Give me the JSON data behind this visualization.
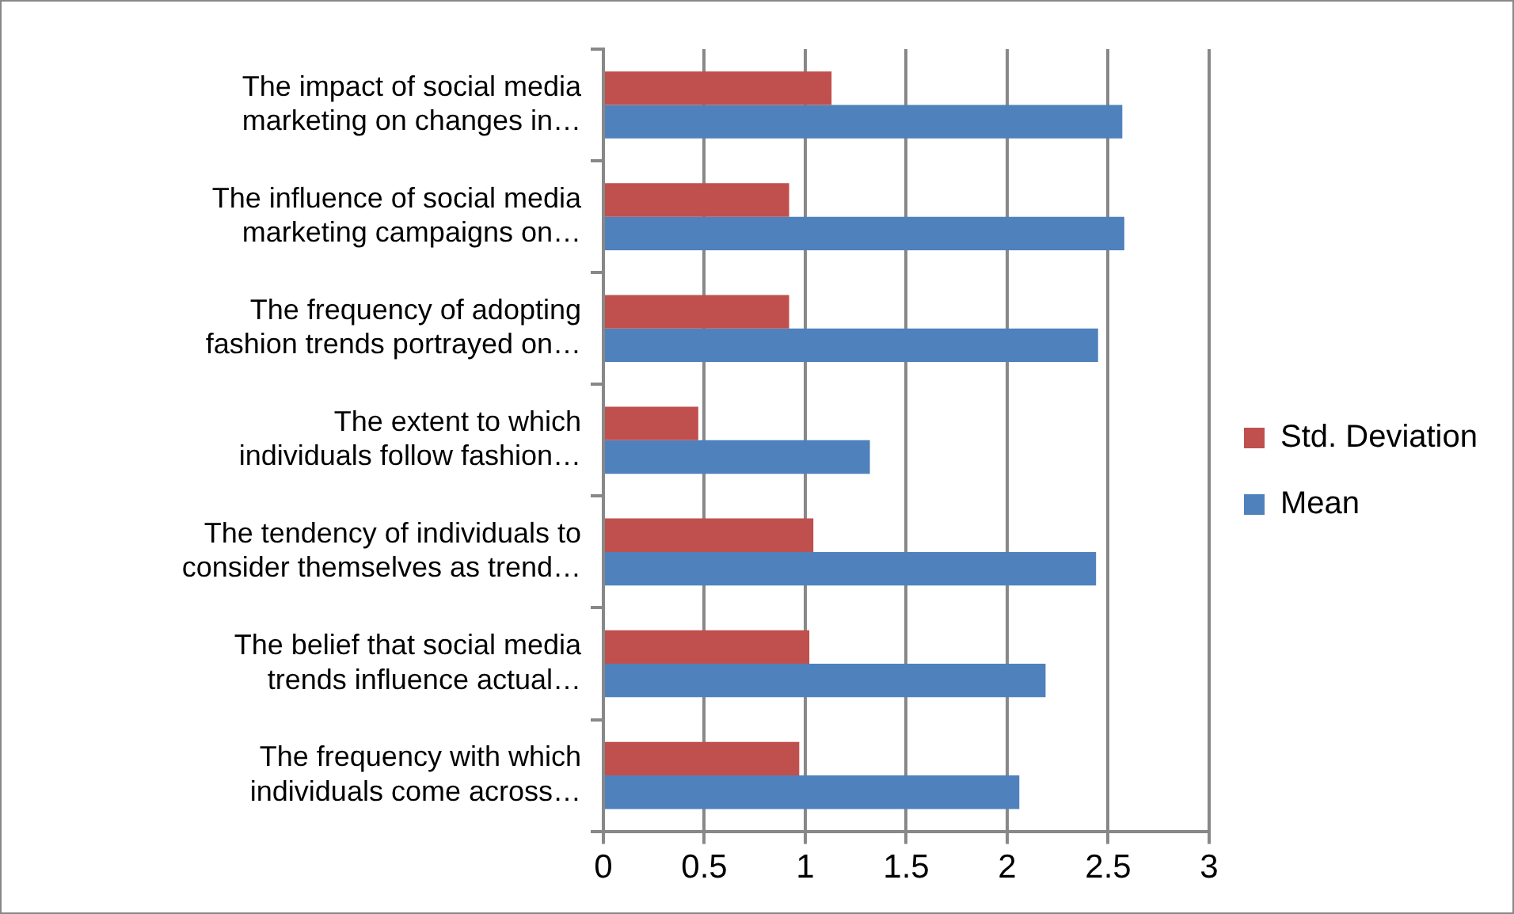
{
  "chart_data": {
    "type": "bar",
    "orientation": "horizontal",
    "categories": [
      "The impact of social media marketing on changes in…",
      "The influence of social media marketing campaigns on…",
      "The frequency of adopting fashion trends portrayed on…",
      "The extent to which individuals follow fashion…",
      "The tendency of individuals to consider themselves as trend…",
      "The belief that social media trends influence actual…",
      "The frequency with which individuals come across…"
    ],
    "series": [
      {
        "name": "Std. Deviation",
        "color": "#c0504d",
        "values": [
          1.13,
          0.92,
          0.92,
          0.47,
          1.04,
          1.02,
          0.97
        ]
      },
      {
        "name": "Mean",
        "color": "#4f81bd",
        "values": [
          2.57,
          2.58,
          2.45,
          1.32,
          2.44,
          2.19,
          2.06
        ]
      }
    ],
    "xlim": [
      0,
      3
    ],
    "xticks": [
      0,
      0.5,
      1,
      1.5,
      2,
      2.5,
      3
    ],
    "grid": "x",
    "legend": "right"
  }
}
